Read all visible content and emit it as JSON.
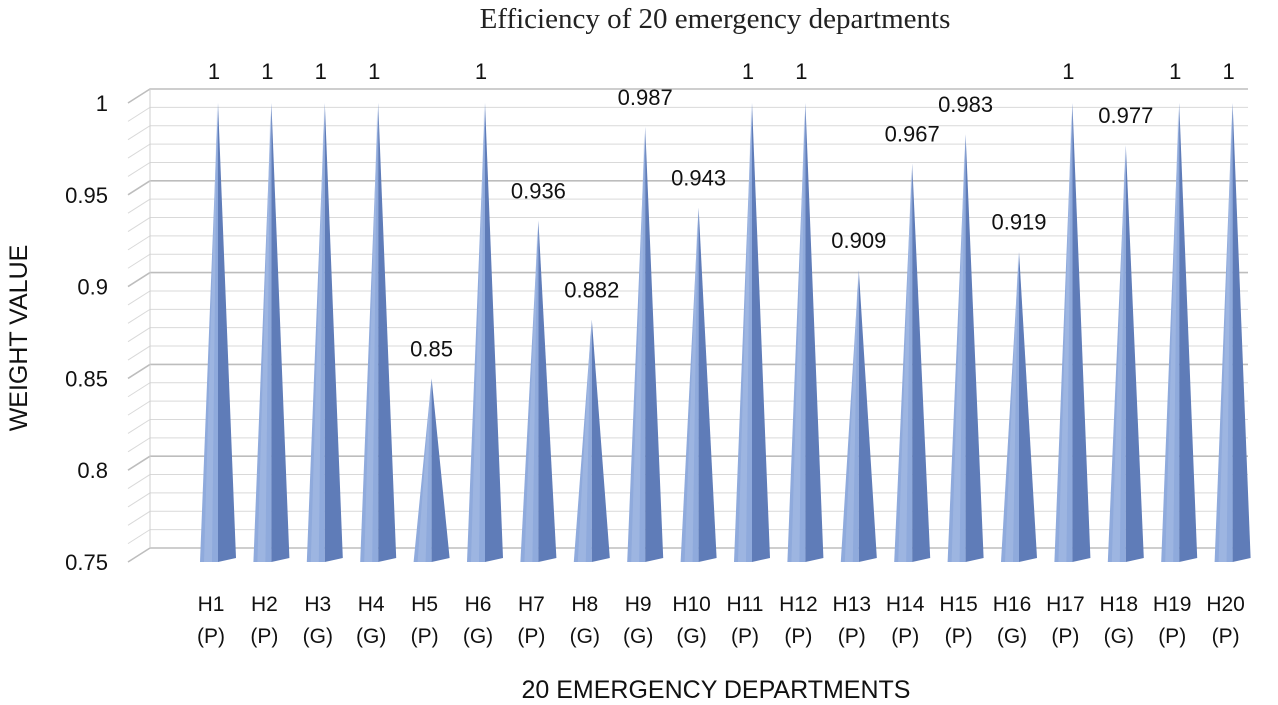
{
  "chart_data": {
    "type": "bar",
    "title": "Efficiency of 20 emergency departments",
    "xlabel": "20 EMERGENCY DEPARTMENTS",
    "ylabel": "WEIGHT VALUE",
    "ylim": [
      0.75,
      1
    ],
    "yticks": [
      "0.75",
      "0.8",
      "0.85",
      "0.9",
      "0.95",
      "1"
    ],
    "grid": true,
    "bar_shape": "3d-cone",
    "categories": [
      [
        "H1",
        "(P)"
      ],
      [
        "H2",
        "(P)"
      ],
      [
        "H3",
        "(G)"
      ],
      [
        "H4",
        "(G)"
      ],
      [
        "H5",
        "(P)"
      ],
      [
        "H6",
        "(G)"
      ],
      [
        "H7",
        "(P)"
      ],
      [
        "H8",
        "(G)"
      ],
      [
        "H9",
        "(G)"
      ],
      [
        "H10",
        "(G)"
      ],
      [
        "H11",
        "(P)"
      ],
      [
        "H12",
        "(P)"
      ],
      [
        "H13",
        "(P)"
      ],
      [
        "H14",
        "(P)"
      ],
      [
        "H15",
        "(P)"
      ],
      [
        "H16",
        "(G)"
      ],
      [
        "H17",
        "(P)"
      ],
      [
        "H18",
        "(G)"
      ],
      [
        "H19",
        "(P)"
      ],
      [
        "H20",
        "(P)"
      ]
    ],
    "values": [
      1,
      1,
      1,
      1,
      0.85,
      1,
      0.936,
      0.882,
      0.987,
      0.943,
      1,
      1,
      0.909,
      0.967,
      0.983,
      0.919,
      1,
      0.977,
      1,
      1
    ],
    "data_labels": [
      "1",
      "1",
      "1",
      "1",
      "0.85",
      "1",
      "0.936",
      "0.882",
      "0.987",
      "0.943",
      "1",
      "1",
      "0.909",
      "0.967",
      "0.983",
      "0.919",
      "1",
      "0.977",
      "1",
      "1"
    ],
    "colors": {
      "bar_light": "#a9bde6",
      "bar_mid": "#8faadc",
      "bar_dark": "#5f7cb8",
      "grid": "#c8c8c8"
    }
  }
}
